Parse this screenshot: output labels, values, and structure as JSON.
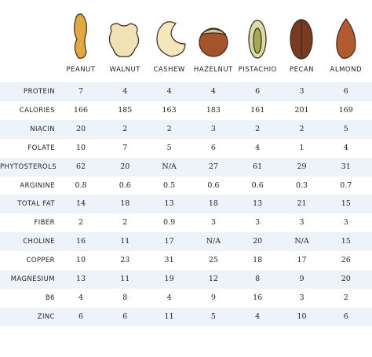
{
  "table": {
    "columns": [
      "PEANUT",
      "WALNUT",
      "CASHEW",
      "HAZELNUT",
      "PISTACHIO",
      "PECAN",
      "ALMOND"
    ],
    "rows": [
      [
        "PROTEIN",
        "7",
        "4",
        "4",
        "4",
        "6",
        "3",
        "6"
      ],
      [
        "CALORIES",
        "166",
        "185",
        "163",
        "183",
        "161",
        "201",
        "169"
      ],
      [
        "NIACIN",
        "20",
        "2",
        "2",
        "3",
        "2",
        "2",
        "5"
      ],
      [
        "FOLATE",
        "10",
        "7",
        "5",
        "6",
        "4",
        "1",
        "4"
      ],
      [
        "PHYTOSTEROLS",
        "62",
        "20",
        "N/A",
        "27",
        "61",
        "29",
        "31"
      ],
      [
        "ARGININE",
        "0.8",
        "0.6",
        "0.5",
        "0.6",
        "0.6",
        "0.3",
        "0.7"
      ],
      [
        "TOTAL FAT",
        "14",
        "18",
        "13",
        "18",
        "13",
        "21",
        "15"
      ],
      [
        "FIBER",
        "2",
        "2",
        "0.9",
        "3",
        "3",
        "3",
        "3"
      ],
      [
        "CHOLINE",
        "16",
        "11",
        "17",
        "N/A",
        "20",
        "N/A",
        "15"
      ],
      [
        "COPPER",
        "10",
        "23",
        "31",
        "25",
        "18",
        "17",
        "26"
      ],
      [
        "MAGNESIUM",
        "13",
        "11",
        "19",
        "12",
        "8",
        "9",
        "20"
      ],
      [
        "B6",
        "4",
        "8",
        "4",
        "9",
        "16",
        "3",
        "2"
      ],
      [
        "ZINC",
        "6",
        "6",
        "11",
        "5",
        "4",
        "10",
        "6"
      ]
    ]
  }
}
